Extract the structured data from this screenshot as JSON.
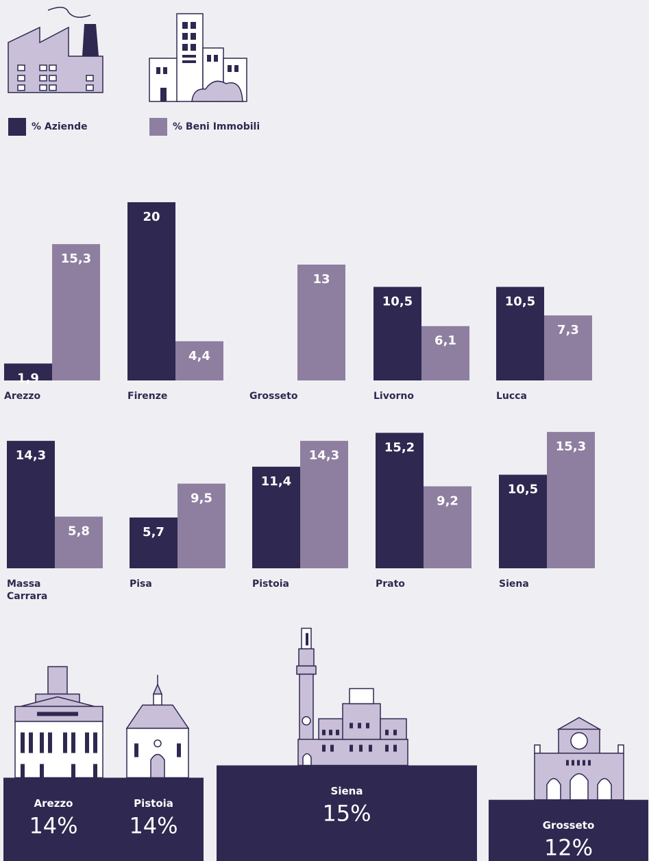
{
  "chart_data": [
    {
      "type": "bar",
      "categories": [
        "Arezzo",
        "Firenze",
        "Grosseto",
        "Livorno",
        "Lucca",
        "Massa Carrara",
        "Pisa",
        "Pistoia",
        "Prato",
        "Siena"
      ],
      "series": [
        {
          "name": "% Aziende",
          "color": "#2f2850",
          "values": [
            1.9,
            20,
            null,
            10.5,
            10.5,
            14.3,
            5.7,
            11.4,
            15.2,
            10.5
          ],
          "value_labels": [
            "1,9",
            "20",
            null,
            "10,5",
            "10,5",
            "14,3",
            "5,7",
            "11,4",
            "15,2",
            "10,5"
          ]
        },
        {
          "name": "% Beni Immobili",
          "color": "#8e7fa0",
          "values": [
            15.3,
            4.4,
            13,
            6.1,
            7.3,
            5.8,
            9.5,
            14.3,
            9.2,
            15.3
          ],
          "value_labels": [
            "15,3",
            "4,4",
            "13",
            "6,1",
            "7,3",
            "5,8",
            "9,5",
            "14,3",
            "9,2",
            "15,3"
          ]
        }
      ],
      "legend": "top-left"
    },
    {
      "type": "podium",
      "categories": [
        "Arezzo",
        "Pistoia",
        "Siena",
        "Grosseto"
      ],
      "values": [
        14,
        14,
        15,
        12
      ],
      "value_labels": [
        "14%",
        "14%",
        "15%",
        "12%"
      ],
      "color": "#2f2850"
    }
  ]
}
